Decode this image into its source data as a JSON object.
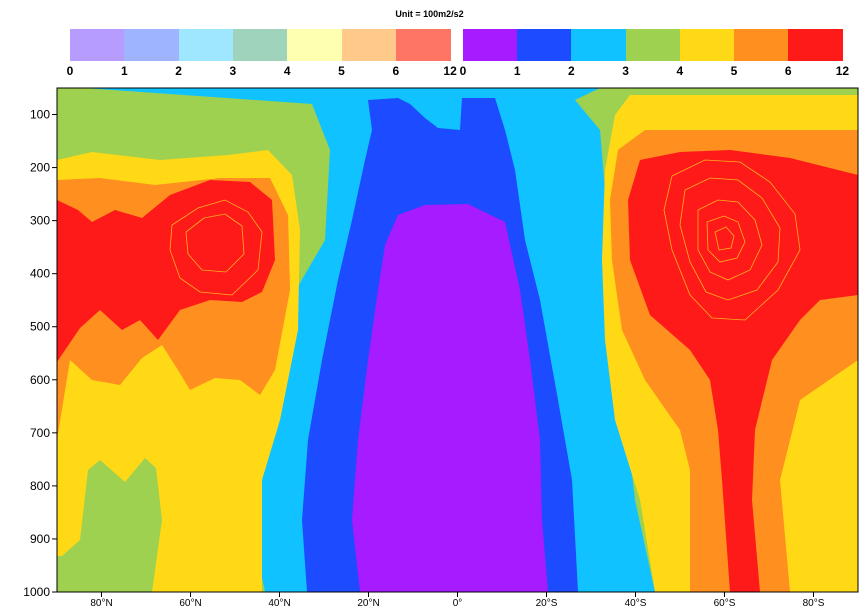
{
  "colorbar": {
    "title": "Unit = 100m2/s2",
    "left": {
      "colors": [
        "#b79cff",
        "#9fb4ff",
        "#9fe6ff",
        "#9fd3bb",
        "#ffffb2",
        "#ffc98a",
        "#ff7564"
      ],
      "ticks": [
        "0",
        "1",
        "2",
        "3",
        "4",
        "5",
        "6",
        "12"
      ]
    },
    "right": {
      "colors": [
        "#a61bff",
        "#1d4bff",
        "#10c2ff",
        "#9ed150",
        "#ffd816",
        "#ff8f1e",
        "#ff1a1a"
      ],
      "ticks": [
        "0",
        "1",
        "2",
        "3",
        "4",
        "5",
        "6",
        "12"
      ]
    }
  },
  "chart_data": {
    "type": "contour",
    "title": "",
    "xlabel": "",
    "ylabel": "",
    "x_ticks": [
      "80°N",
      "60°N",
      "40°N",
      "20°N",
      "0°",
      "20°S",
      "40°S",
      "60°S",
      "80°S"
    ],
    "y_ticks": [
      "100",
      "200",
      "300",
      "400",
      "500",
      "600",
      "700",
      "800",
      "900",
      "1000"
    ],
    "ylim": [
      1000,
      50
    ],
    "levels": [
      0,
      1,
      2,
      3,
      4,
      5,
      6,
      12
    ],
    "level_colors": [
      "#a61bff",
      "#1d4bff",
      "#10c2ff",
      "#9ed150",
      "#ffd816",
      "#ff8f1e",
      "#ff1a1a"
    ],
    "maxima": [
      {
        "lat": "~65°N",
        "pressure": 300,
        "value_range": "6-12"
      },
      {
        "lat": "~55°S",
        "pressure": 300,
        "value_range": "6-12"
      }
    ]
  }
}
